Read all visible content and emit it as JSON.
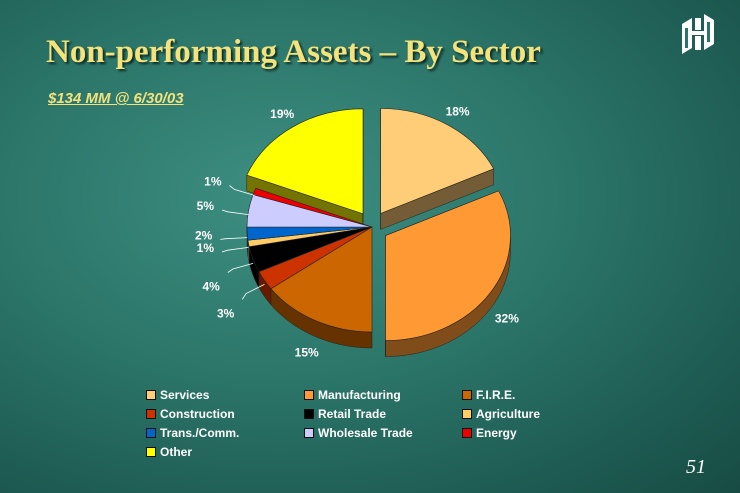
{
  "slide": {
    "title": "Non-performing Assets – By Sector",
    "subtitle": "$134 MM @ 6/30/03",
    "page_number": "51",
    "title_color": "#f4e27a"
  },
  "logo": {
    "icon": "bank-logo-icon"
  },
  "chart_data": {
    "type": "pie",
    "title": "",
    "series": [
      {
        "label": "Services",
        "value": 18,
        "display": "18%",
        "color": "#ffcc77"
      },
      {
        "label": "Manufacturing",
        "value": 32,
        "display": "32%",
        "color": "#ff9933"
      },
      {
        "label": "F.I.R.E.",
        "value": 15,
        "display": "15%",
        "color": "#cc6600"
      },
      {
        "label": "Construction",
        "value": 3,
        "display": "3%",
        "color": "#cc3300"
      },
      {
        "label": "Retail Trade",
        "value": 4,
        "display": "4%",
        "color": "#000000"
      },
      {
        "label": "Agriculture",
        "value": 1,
        "display": "1%",
        "color": "#ffcc66"
      },
      {
        "label": "Trans./Comm.",
        "value": 2,
        "display": "2%",
        "color": "#0066cc"
      },
      {
        "label": "Wholesale Trade",
        "value": 5,
        "display": "5%",
        "color": "#ccccff"
      },
      {
        "label": "Energy",
        "value": 1,
        "display": "1%",
        "color": "#ee0000"
      },
      {
        "label": "Other",
        "value": 19,
        "display": "19%",
        "color": "#ffff00"
      }
    ],
    "legend_position": "bottom",
    "exploded": [
      "Services",
      "Manufacturing",
      "Other"
    ]
  }
}
